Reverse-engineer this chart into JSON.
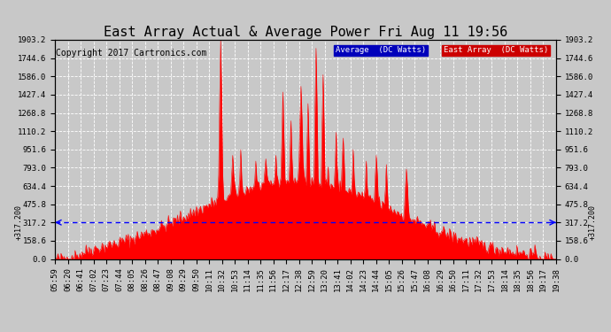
{
  "title": "East Array Actual & Average Power Fri Aug 11 19:56",
  "copyright": "Copyright 2017 Cartronics.com",
  "average_value": 317.2,
  "ylim": [
    0.0,
    1903.2
  ],
  "yticks": [
    0.0,
    158.6,
    317.2,
    475.8,
    634.4,
    793.0,
    951.6,
    1110.2,
    1268.8,
    1427.4,
    1586.0,
    1744.6,
    1903.2
  ],
  "background_color": "#c8c8c8",
  "plot_bg_color": "#c8c8c8",
  "grid_color": "#ffffff",
  "red_fill_color": "#ff0000",
  "blue_line_color": "#0000ff",
  "avg_label": "Average  (DC Watts)",
  "east_label": "East Array  (DC Watts)",
  "avg_label_bg": "#0000bb",
  "east_label_bg": "#cc0000",
  "xtick_labels": [
    "05:59",
    "06:20",
    "06:41",
    "07:02",
    "07:23",
    "07:44",
    "08:05",
    "08:26",
    "08:47",
    "09:08",
    "09:29",
    "09:50",
    "10:11",
    "10:32",
    "10:53",
    "11:14",
    "11:35",
    "11:56",
    "12:17",
    "12:38",
    "12:59",
    "13:20",
    "13:41",
    "14:02",
    "14:23",
    "14:44",
    "15:05",
    "15:26",
    "15:47",
    "16:08",
    "16:29",
    "16:50",
    "17:11",
    "17:32",
    "17:53",
    "18:14",
    "18:35",
    "18:56",
    "19:17",
    "19:38"
  ],
  "title_fontsize": 11,
  "tick_fontsize": 6.5,
  "copyright_fontsize": 7
}
